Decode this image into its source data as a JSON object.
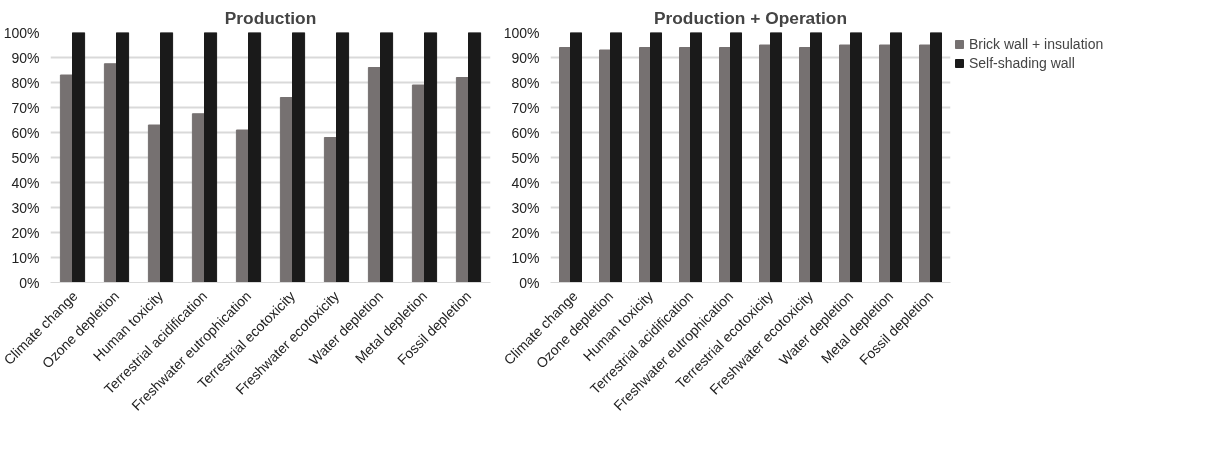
{
  "chart_data": [
    {
      "type": "bar",
      "title": "Production",
      "categories": [
        "Climate change",
        "Ozone depletion",
        "Human toxicity",
        "Terrestrial acidification",
        "Freshwater eutrophication",
        "Terrestrial ecotoxicity",
        "Freshwater ecotoxicity",
        "Water depletion",
        "Metal depletion",
        "Fossil depletion"
      ],
      "series": [
        {
          "color": "#767171",
          "values": [
            83,
            87.5,
            63,
            67.5,
            61,
            74,
            58,
            86,
            79,
            82
          ]
        },
        {
          "color": "#1a1a1a",
          "values": [
            100,
            100,
            100,
            100,
            100,
            100,
            100,
            100,
            100,
            100
          ]
        }
      ],
      "ylim": [
        0,
        100
      ],
      "yticks": [
        {
          "value": 0,
          "label": "0%"
        },
        {
          "value": 10,
          "label": "10%"
        },
        {
          "value": 20,
          "label": "20%"
        },
        {
          "value": 30,
          "label": "30%"
        },
        {
          "value": 40,
          "label": "40%"
        },
        {
          "value": 50,
          "label": "50%"
        },
        {
          "value": 60,
          "label": "60%"
        },
        {
          "value": 70,
          "label": "70%"
        },
        {
          "value": 80,
          "label": "80%"
        },
        {
          "value": 90,
          "label": "90%"
        },
        {
          "value": 100,
          "label": "100%"
        }
      ],
      "grid": "y"
    },
    {
      "type": "bar",
      "title": "Production + Operation",
      "categories": [
        "Climate change",
        "Ozone depletion",
        "Human toxicity",
        "Terrestrial acidification",
        "Freshwater eutrophication",
        "Terrestrial ecotoxicity",
        "Freshwater ecotoxicity",
        "Water depletion",
        "Metal depletion",
        "Fossil depletion"
      ],
      "series": [
        {
          "name": "Brick wall + insulation",
          "color": "#767171",
          "values": [
            94,
            93,
            94,
            94,
            94,
            95,
            94,
            95,
            95,
            95
          ]
        },
        {
          "name": "Self-shading wall",
          "color": "#1a1a1a",
          "values": [
            100,
            100,
            100,
            100,
            100,
            100,
            100,
            100,
            100,
            100
          ]
        }
      ],
      "ylim": [
        0,
        100
      ],
      "yticks": [
        {
          "value": 0,
          "label": "0%"
        },
        {
          "value": 10,
          "label": "10%"
        },
        {
          "value": 20,
          "label": "20%"
        },
        {
          "value": 30,
          "label": "30%"
        },
        {
          "value": 40,
          "label": "40%"
        },
        {
          "value": 50,
          "label": "50%"
        },
        {
          "value": 60,
          "label": "60%"
        },
        {
          "value": 70,
          "label": "70%"
        },
        {
          "value": 80,
          "label": "80%"
        },
        {
          "value": 90,
          "label": "90%"
        },
        {
          "value": 100,
          "label": "100%"
        }
      ],
      "grid": "y",
      "legend": "right"
    }
  ]
}
